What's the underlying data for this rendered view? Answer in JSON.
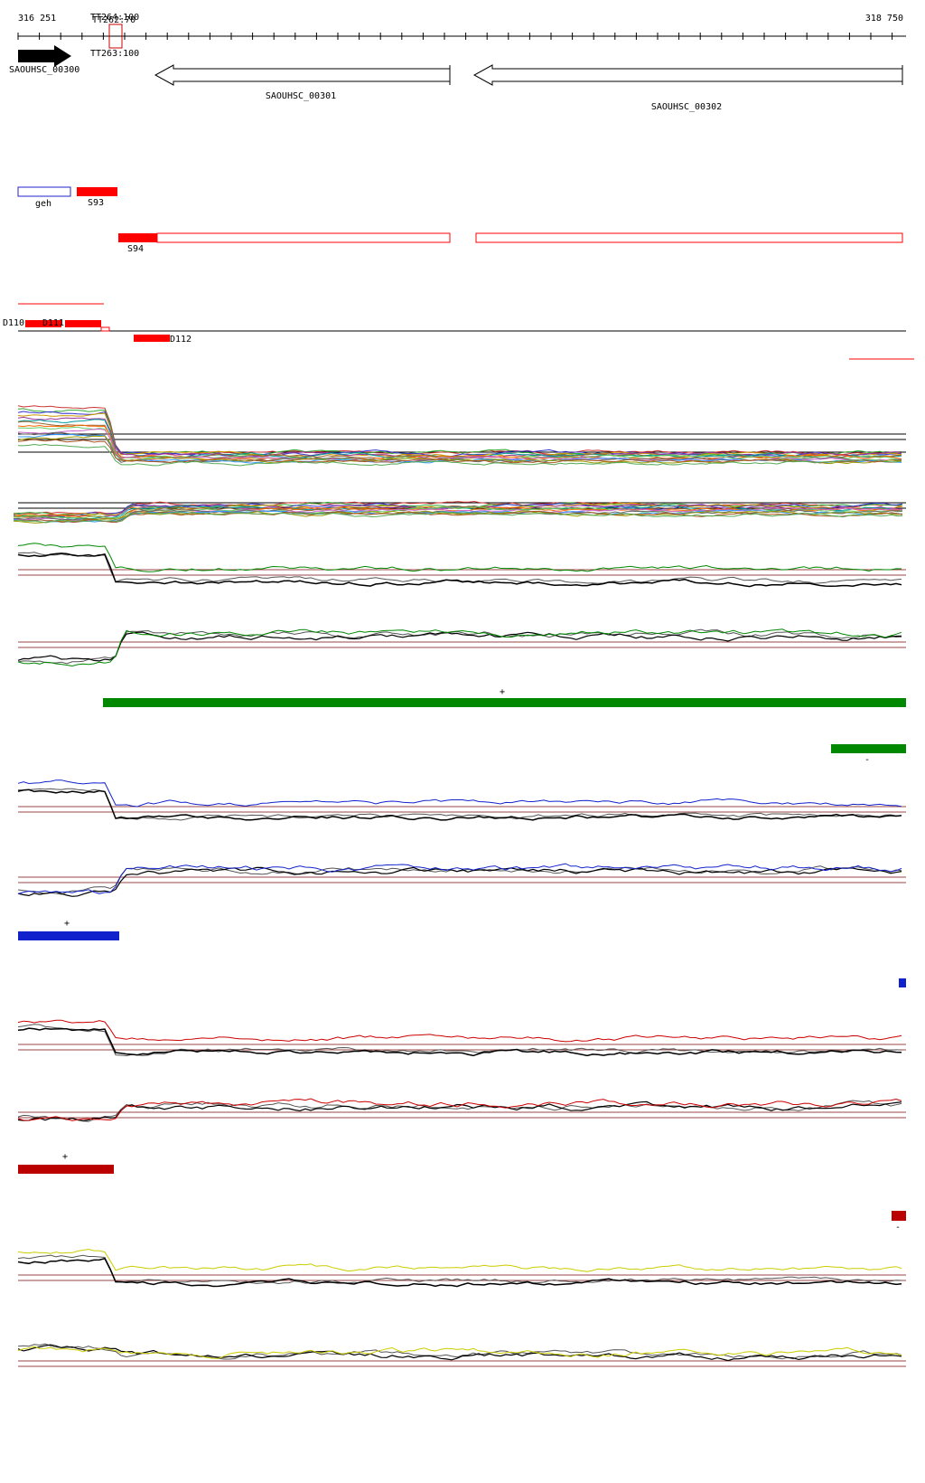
{
  "ruler": {
    "start": "316 251",
    "end": "318 750"
  },
  "markers": [
    "TT264:100",
    "TT262:70",
    "TT263:100"
  ],
  "genes": [
    {
      "label": "SAOUHSC_00300"
    },
    {
      "label": "SAOUHSC_00301"
    },
    {
      "label": "SAOUHSC_00302"
    }
  ],
  "features": [
    {
      "label": "geh"
    },
    {
      "label": "S93"
    },
    {
      "label": "S94"
    },
    {
      "label": "D110"
    },
    {
      "label": "D111"
    },
    {
      "label": "D112"
    }
  ],
  "strands": [
    "+",
    "-",
    "+",
    "+",
    "-"
  ]
}
